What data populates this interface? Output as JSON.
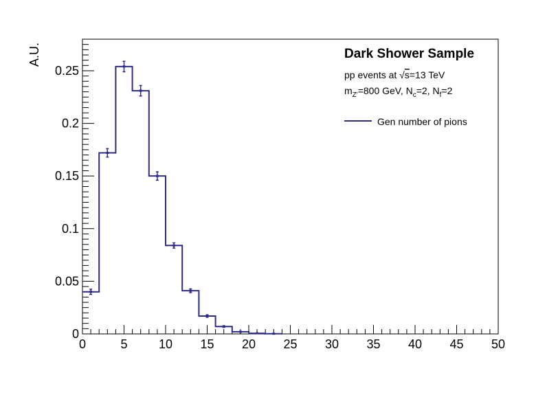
{
  "chart_data": {
    "type": "histogram",
    "title": "Dark Shower Sample",
    "info_lines": {
      "line1_prefix": "pp events at ",
      "line1_sqrt": "√",
      "line1_s": "s",
      "line1_suffix": "=13 TeV",
      "line2_m": "m",
      "line2_m_sub": "Z'",
      "line2_mass": "=800 GeV, N",
      "line2_nc_sub": "c",
      "line2_nc_val": "=2, N",
      "line2_nf_sub": "f",
      "line2_nf_val": "=2"
    },
    "ylabel": "A.U.",
    "xlabel": "",
    "xlim": [
      0,
      50
    ],
    "ylim": [
      0,
      0.28
    ],
    "x_ticks": [
      0,
      5,
      10,
      15,
      20,
      25,
      30,
      35,
      40,
      45,
      50
    ],
    "x_tick_labels": [
      "0",
      "5",
      "10",
      "15",
      "20",
      "25",
      "30",
      "35",
      "40",
      "45",
      "50"
    ],
    "y_ticks": [
      0,
      0.05,
      0.1,
      0.15,
      0.2,
      0.25
    ],
    "y_tick_labels": [
      "0",
      "0.05",
      "0.1",
      "0.15",
      "0.2",
      "0.25"
    ],
    "grid": false,
    "legend_position": "top-right",
    "color": "#2b2b8c",
    "series": [
      {
        "name": "Gen number of pions",
        "bin_edges": [
          0,
          2,
          4,
          6,
          8,
          10,
          12,
          14,
          16,
          18,
          20,
          22,
          24
        ],
        "values": [
          0.04,
          0.172,
          0.254,
          0.231,
          0.15,
          0.084,
          0.041,
          0.017,
          0.007,
          0.002,
          0.0006,
          0.0002
        ],
        "errors": [
          0.0025,
          0.004,
          0.005,
          0.005,
          0.004,
          0.0025,
          0.0018,
          0.0012,
          0.0008,
          0.0004,
          0.0002,
          0.0001
        ]
      }
    ]
  }
}
